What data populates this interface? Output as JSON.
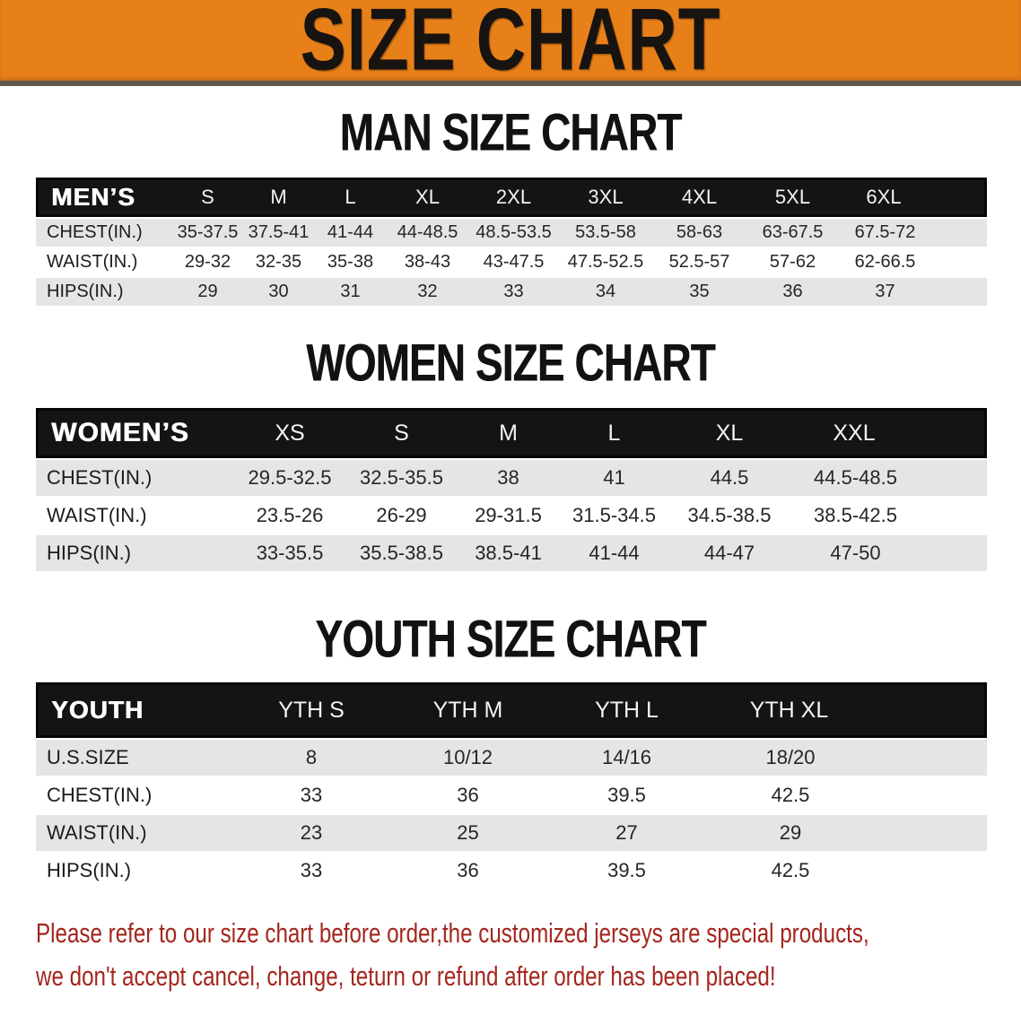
{
  "banner": {
    "title": "SIZE CHART",
    "bg_color": "#E8801A",
    "text_color": "#171310"
  },
  "sections": [
    {
      "id": "men",
      "title": "MAN SIZE CHART",
      "header_label": "MEN’S",
      "columns": [
        "S",
        "M",
        "L",
        "XL",
        "2XL",
        "3XL",
        "4XL",
        "5XL",
        "6XL"
      ],
      "rows": [
        {
          "label": "CHEST(IN.)",
          "values": [
            "35-37.5",
            "37.5-41",
            "41-44",
            "44-48.5",
            "48.5-53.5",
            "53.5-58",
            "58-63",
            "63-67.5",
            "67.5-72"
          ]
        },
        {
          "label": "WAIST(IN.)",
          "values": [
            "29-32",
            "32-35",
            "35-38",
            "38-43",
            "43-47.5",
            "47.5-52.5",
            "52.5-57",
            "57-62",
            "62-66.5"
          ]
        },
        {
          "label": "HIPS(IN.)",
          "values": [
            "29",
            "30",
            "31",
            "32",
            "33",
            "34",
            "35",
            "36",
            "37"
          ]
        }
      ]
    },
    {
      "id": "women",
      "title": "WOMEN SIZE CHART",
      "header_label": "WOMEN’S",
      "columns": [
        "XS",
        "S",
        "M",
        "L",
        "XL",
        "XXL"
      ],
      "rows": [
        {
          "label": "CHEST(IN.)",
          "values": [
            "29.5-32.5",
            "32.5-35.5",
            "38",
            "41",
            "44.5",
            "44.5-48.5"
          ]
        },
        {
          "label": "WAIST(IN.)",
          "values": [
            "23.5-26",
            "26-29",
            "29-31.5",
            "31.5-34.5",
            "34.5-38.5",
            "38.5-42.5"
          ]
        },
        {
          "label": "HIPS(IN.)",
          "values": [
            "33-35.5",
            "35.5-38.5",
            "38.5-41",
            "41-44",
            "44-47",
            "47-50"
          ]
        }
      ]
    },
    {
      "id": "youth",
      "title": "YOUTH SIZE CHART",
      "header_label": "YOUTH",
      "columns": [
        "YTH S",
        "YTH M",
        "YTH L",
        "YTH XL"
      ],
      "rows": [
        {
          "label": "U.S.SIZE",
          "values": [
            "8",
            "10/12",
            "14/16",
            "18/20"
          ]
        },
        {
          "label": "CHEST(IN.)",
          "values": [
            "33",
            "36",
            "39.5",
            "42.5"
          ]
        },
        {
          "label": "WAIST(IN.)",
          "values": [
            "23",
            "25",
            "27",
            "29"
          ]
        },
        {
          "label": "HIPS(IN.)",
          "values": [
            "33",
            "36",
            "39.5",
            "42.5"
          ]
        }
      ]
    }
  ],
  "disclaimer": {
    "line1": "Please refer to our size chart before order,the customized jerseys are special products,",
    "line2": "we don't accept cancel, change, teturn or refund after order has been placed!",
    "color": "#A3261E"
  },
  "style_colors": {
    "table_header_bg": "#141414",
    "stripe_row_bg": "#E6E5E3"
  }
}
